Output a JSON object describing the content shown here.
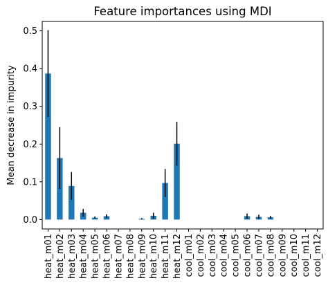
{
  "chart_data": {
    "type": "bar",
    "title": "Feature importances using MDI",
    "xlabel": "",
    "ylabel": "Mean decrease in impurity",
    "ylim": [
      -0.025,
      0.525
    ],
    "yticks": [
      0.0,
      0.1,
      0.2,
      0.3,
      0.4,
      0.5
    ],
    "ytick_labels": [
      "0.0",
      "0.1",
      "0.2",
      "0.3",
      "0.4",
      "0.5"
    ],
    "grid": false,
    "bar_color": "#1f77b4",
    "error_color": "#000000",
    "categories": [
      "heat_m01",
      "heat_m02",
      "heat_m03",
      "heat_m04",
      "heat_m05",
      "heat_m06",
      "heat_m07",
      "heat_m08",
      "heat_m09",
      "heat_m10",
      "heat_m11",
      "heat_m12",
      "cool_m01",
      "cool_m02",
      "cool_m03",
      "cool_m04",
      "cool_m05",
      "cool_m06",
      "cool_m07",
      "cool_m08",
      "cool_m09",
      "cool_m10",
      "cool_m11",
      "cool_m12"
    ],
    "values": [
      0.387,
      0.163,
      0.089,
      0.018,
      0.005,
      0.009,
      0.0,
      0.0,
      0.002,
      0.01,
      0.097,
      0.201,
      0.0,
      0.0,
      0.0,
      0.0,
      0.0,
      0.009,
      0.007,
      0.006,
      0.0,
      0.0,
      0.0,
      0.0
    ],
    "errors": [
      0.115,
      0.082,
      0.037,
      0.01,
      0.003,
      0.005,
      0.0,
      0.0,
      0.002,
      0.008,
      0.037,
      0.058,
      0.0,
      0.0,
      0.0,
      0.0,
      0.0,
      0.007,
      0.006,
      0.004,
      0.0,
      0.0,
      0.0,
      0.0
    ]
  }
}
